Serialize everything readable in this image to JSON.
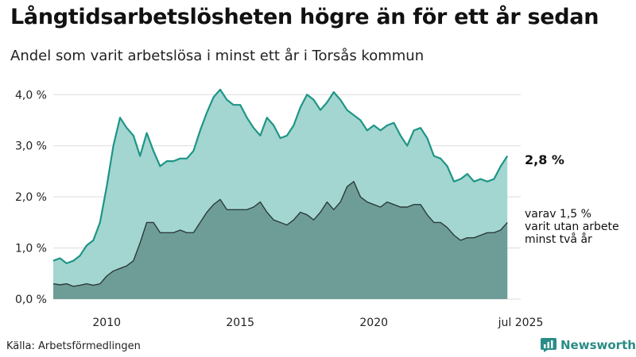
{
  "title": "Långtidsarbetslösheten högre än för ett år sedan",
  "subtitle": "Andel som varit arbetslösa i minst ett år i Torsås kommun",
  "source": "Källa: Arbetsförmedlingen",
  "brand": "Newsworthy",
  "annotations": {
    "total_value": "2,8 %",
    "long_line1": "varav 1,5 %",
    "long_line2": "varit utan arbete",
    "long_line3": "minst två år"
  },
  "colors": {
    "total_line": "#1e9586",
    "total_fill": "#a3d6d1",
    "long_fill": "#6e9d97",
    "long_line": "#2b3b3a",
    "grid": "#dddddd",
    "brand": "#2a8c86"
  },
  "chart_data": {
    "type": "area",
    "title": "Långtidsarbetslösheten högre än för ett år sedan",
    "ylim": [
      0,
      4.3
    ],
    "yticks": [
      0,
      1,
      2,
      3,
      4
    ],
    "ytick_labels": [
      "0,0 %",
      "1,0 %",
      "2,0 %",
      "3,0 %",
      "4,0 %"
    ],
    "xlim": [
      2008.0,
      2025.5
    ],
    "xticks": [
      2010,
      2015,
      2020,
      2025.5
    ],
    "xtick_labels": [
      "2010",
      "2015",
      "2020",
      "jul 2025"
    ],
    "x_start": 2008.0,
    "x_step": 0.25,
    "series": [
      {
        "name": "minst ett år",
        "values": [
          0.75,
          0.8,
          0.7,
          0.75,
          0.85,
          1.05,
          1.15,
          1.5,
          2.2,
          3.0,
          3.55,
          3.35,
          3.2,
          2.8,
          3.25,
          2.9,
          2.6,
          2.7,
          2.7,
          2.75,
          2.75,
          2.9,
          3.3,
          3.65,
          3.95,
          4.1,
          3.9,
          3.8,
          3.8,
          3.55,
          3.35,
          3.2,
          3.55,
          3.4,
          3.15,
          3.2,
          3.4,
          3.75,
          4.0,
          3.9,
          3.7,
          3.85,
          4.05,
          3.9,
          3.7,
          3.6,
          3.5,
          3.3,
          3.4,
          3.3,
          3.4,
          3.45,
          3.2,
          3.0,
          3.3,
          3.35,
          3.15,
          2.8,
          2.75,
          2.6,
          2.3,
          2.35,
          2.45,
          2.3,
          2.35,
          2.3,
          2.35,
          2.6,
          2.8
        ]
      },
      {
        "name": "minst två år",
        "values": [
          0.3,
          0.28,
          0.3,
          0.25,
          0.27,
          0.3,
          0.27,
          0.3,
          0.45,
          0.55,
          0.6,
          0.65,
          0.75,
          1.1,
          1.5,
          1.5,
          1.3,
          1.3,
          1.3,
          1.35,
          1.3,
          1.3,
          1.5,
          1.7,
          1.85,
          1.95,
          1.75,
          1.75,
          1.75,
          1.75,
          1.8,
          1.9,
          1.7,
          1.55,
          1.5,
          1.45,
          1.55,
          1.7,
          1.65,
          1.55,
          1.7,
          1.9,
          1.75,
          1.9,
          2.2,
          2.3,
          2.0,
          1.9,
          1.85,
          1.8,
          1.9,
          1.85,
          1.8,
          1.8,
          1.85,
          1.85,
          1.65,
          1.5,
          1.5,
          1.4,
          1.25,
          1.15,
          1.2,
          1.2,
          1.25,
          1.3,
          1.3,
          1.35,
          1.5
        ]
      }
    ],
    "grid": true,
    "legend": "none"
  }
}
